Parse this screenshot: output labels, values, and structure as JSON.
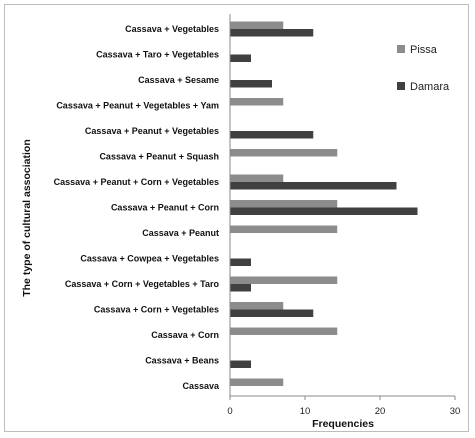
{
  "chart_data": {
    "type": "bar",
    "orientation": "horizontal",
    "xlabel": "Frequencies",
    "ylabel": "The type of cultural  association",
    "xlim": [
      0,
      30
    ],
    "xticks": [
      "0",
      "10",
      "20",
      "30"
    ],
    "grid": false,
    "legend_position": "right",
    "categories": [
      "Cassava + Vegetables",
      "Cassava + Taro + Vegetables",
      "Cassava + Sesame",
      "Cassava + Peanut + Vegetables + Yam",
      "Cassava + Peanut + Vegetables",
      "Cassava + Peanut + Squash",
      "Cassava + Peanut + Corn + Vegetables",
      "Cassava + Peanut + Corn",
      "Cassava + Peanut",
      "Cassava + Cowpea + Vegetables",
      "Cassava + Corn + Vegetables + Taro",
      "Cassava + Corn + Vegetables",
      "Cassava + Corn",
      "Cassava + Beans",
      "Cassava"
    ],
    "series": [
      {
        "name": "Pissa",
        "color": "#8c8c8c",
        "values": [
          7.1,
          0,
          0,
          7.1,
          0,
          14.3,
          7.1,
          14.3,
          14.3,
          0,
          14.3,
          7.1,
          14.3,
          0,
          7.1
        ]
      },
      {
        "name": "Damara",
        "color": "#404040",
        "values": [
          11.1,
          2.8,
          5.6,
          0,
          11.1,
          0,
          22.2,
          25.0,
          0,
          2.8,
          2.8,
          11.1,
          0,
          2.8,
          0
        ]
      }
    ]
  }
}
